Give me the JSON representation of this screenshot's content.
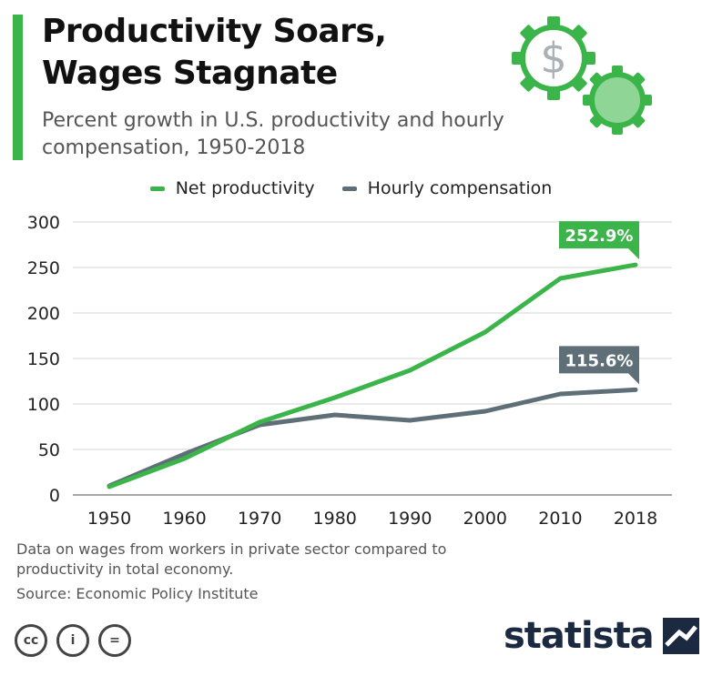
{
  "header": {
    "title": "Productivity Soars, Wages Stagnate",
    "subtitle": "Percent growth in U.S. productivity and hourly compensation, 1950-2018",
    "gears_icon": "gears-dollar-icon",
    "gear_dollar_glyph": "$"
  },
  "colors": {
    "accent": "#3bb54a",
    "productivity": "#3bb54a",
    "compensation": "#5f6f78",
    "grid": "#d6d6d6"
  },
  "legend": {
    "items": [
      {
        "label": "Net productivity",
        "color": "#3bb54a"
      },
      {
        "label": "Hourly compensation",
        "color": "#5f6f78"
      }
    ]
  },
  "chart_data": {
    "type": "line",
    "title": "Productivity Soars, Wages Stagnate",
    "subtitle": "Percent growth in U.S. productivity and hourly compensation, 1950-2018",
    "xlabel": "",
    "ylabel": "",
    "x": [
      1950,
      1960,
      1970,
      1980,
      1990,
      2000,
      2010,
      2018
    ],
    "x_tick_labels": [
      "1950",
      "1960",
      "1970",
      "1980",
      "1990",
      "2000",
      "2010",
      "2018"
    ],
    "ylim": [
      0,
      300
    ],
    "y_ticks": [
      0,
      50,
      100,
      150,
      200,
      250,
      300
    ],
    "grid": true,
    "legend_position": "top-center",
    "series": [
      {
        "name": "Net productivity",
        "color": "#3bb54a",
        "values": [
          9,
          40,
          80,
          107,
          137,
          179,
          238,
          252.9
        ],
        "end_label": "252.9%"
      },
      {
        "name": "Hourly compensation",
        "color": "#5f6f78",
        "values": [
          10,
          45,
          77,
          88,
          82,
          92,
          111,
          115.6
        ],
        "end_label": "115.6%"
      }
    ]
  },
  "footer": {
    "note": "Data on wages from workers in private sector compared to productivity in total economy.",
    "source": "Source: Economic Policy Institute",
    "license_icons": [
      {
        "name": "cc-icon",
        "glyph": "cc"
      },
      {
        "name": "attribution-icon",
        "glyph": "i"
      },
      {
        "name": "no-derivatives-icon",
        "glyph": "="
      }
    ],
    "brand": "statista"
  }
}
